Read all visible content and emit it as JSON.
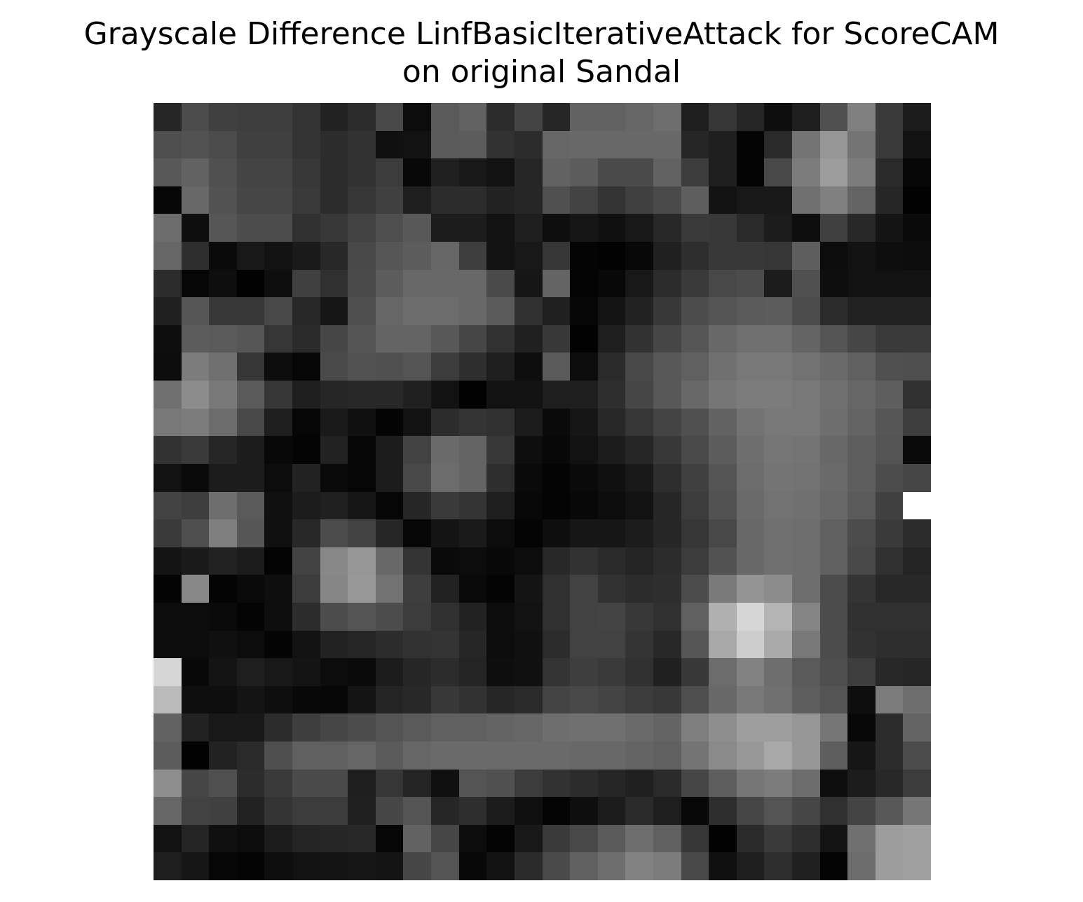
{
  "chart_data": {
    "type": "heatmap",
    "title_line1": "Grayscale Difference LinfBasicIterativeAttack for ScoreCAM",
    "title_line2": "on original Sandal",
    "axes": "off",
    "colormap": "gray",
    "value_range": [
      0,
      255
    ],
    "grid": [
      [
        38,
        76,
        64,
        62,
        62,
        52,
        34,
        44,
        72,
        12,
        90,
        98,
        44,
        68,
        38,
        98,
        98,
        102,
        110,
        30,
        54,
        38,
        14,
        30,
        80,
        128,
        58,
        28
      ],
      [
        78,
        82,
        76,
        64,
        64,
        52,
        44,
        50,
        16,
        18,
        90,
        92,
        50,
        44,
        102,
        104,
        104,
        104,
        104,
        38,
        30,
        4,
        42,
        116,
        150,
        116,
        58,
        18
      ],
      [
        88,
        98,
        80,
        68,
        68,
        56,
        44,
        50,
        60,
        8,
        32,
        24,
        18,
        38,
        98,
        92,
        74,
        74,
        98,
        60,
        30,
        4,
        72,
        124,
        156,
        124,
        42,
        6
      ],
      [
        6,
        104,
        82,
        70,
        70,
        58,
        44,
        54,
        64,
        30,
        44,
        44,
        34,
        38,
        80,
        66,
        52,
        64,
        74,
        94,
        18,
        24,
        24,
        112,
        128,
        100,
        38,
        2
      ],
      [
        108,
        14,
        86,
        76,
        76,
        48,
        56,
        66,
        78,
        88,
        28,
        28,
        18,
        30,
        14,
        22,
        16,
        24,
        40,
        58,
        56,
        42,
        28,
        14,
        64,
        40,
        20,
        10
      ],
      [
        102,
        46,
        10,
        24,
        18,
        26,
        40,
        72,
        86,
        92,
        102,
        62,
        18,
        24,
        54,
        4,
        2,
        8,
        32,
        46,
        56,
        56,
        54,
        94,
        12,
        18,
        14,
        12
      ],
      [
        44,
        6,
        14,
        2,
        14,
        64,
        48,
        74,
        92,
        104,
        104,
        104,
        74,
        22,
        100,
        4,
        8,
        24,
        44,
        58,
        72,
        76,
        28,
        80,
        14,
        18,
        18,
        18
      ],
      [
        32,
        86,
        56,
        56,
        72,
        40,
        22,
        78,
        102,
        108,
        108,
        104,
        90,
        48,
        32,
        6,
        20,
        34,
        56,
        76,
        84,
        90,
        92,
        76,
        44,
        34,
        34,
        34
      ],
      [
        14,
        92,
        90,
        86,
        54,
        42,
        70,
        84,
        100,
        100,
        88,
        70,
        50,
        32,
        56,
        2,
        30,
        50,
        70,
        86,
        104,
        112,
        112,
        100,
        84,
        70,
        58,
        58
      ],
      [
        12,
        124,
        112,
        54,
        12,
        6,
        74,
        82,
        80,
        84,
        60,
        46,
        30,
        14,
        90,
        12,
        42,
        72,
        88,
        96,
        112,
        120,
        120,
        114,
        106,
        96,
        80,
        78
      ],
      [
        112,
        140,
        120,
        90,
        54,
        30,
        38,
        40,
        40,
        32,
        18,
        2,
        18,
        18,
        30,
        30,
        46,
        70,
        88,
        104,
        118,
        124,
        124,
        120,
        112,
        102,
        94,
        48
      ],
      [
        120,
        124,
        108,
        72,
        30,
        6,
        26,
        16,
        4,
        18,
        44,
        52,
        48,
        28,
        10,
        22,
        40,
        54,
        68,
        80,
        98,
        114,
        120,
        120,
        110,
        100,
        86,
        62
      ],
      [
        50,
        58,
        38,
        28,
        8,
        4,
        34,
        6,
        28,
        66,
        106,
        100,
        56,
        14,
        8,
        18,
        28,
        38,
        56,
        74,
        92,
        110,
        118,
        116,
        104,
        94,
        84,
        10
      ],
      [
        18,
        10,
        28,
        28,
        12,
        34,
        10,
        6,
        28,
        72,
        108,
        100,
        46,
        10,
        4,
        10,
        16,
        24,
        46,
        64,
        84,
        108,
        116,
        114,
        106,
        94,
        76,
        70
      ],
      [
        66,
        62,
        110,
        90,
        16,
        28,
        32,
        22,
        6,
        38,
        58,
        52,
        30,
        8,
        4,
        8,
        12,
        18,
        38,
        60,
        82,
        106,
        114,
        112,
        104,
        90,
        64,
        52
      ],
      [
        58,
        78,
        126,
        86,
        16,
        40,
        76,
        66,
        38,
        6,
        20,
        26,
        12,
        4,
        14,
        22,
        22,
        28,
        38,
        54,
        72,
        104,
        112,
        110,
        96,
        76,
        58,
        44
      ],
      [
        20,
        26,
        34,
        28,
        4,
        66,
        136,
        150,
        104,
        52,
        10,
        12,
        8,
        12,
        40,
        50,
        42,
        36,
        44,
        60,
        82,
        104,
        112,
        110,
        96,
        72,
        48,
        36
      ],
      [
        4,
        136,
        4,
        10,
        14,
        60,
        134,
        152,
        114,
        62,
        34,
        10,
        4,
        20,
        48,
        66,
        50,
        44,
        46,
        76,
        122,
        148,
        140,
        110,
        76,
        52,
        40,
        40
      ],
      [
        12,
        12,
        10,
        4,
        14,
        44,
        76,
        84,
        76,
        60,
        48,
        34,
        12,
        18,
        48,
        66,
        68,
        56,
        48,
        96,
        176,
        214,
        180,
        132,
        76,
        48,
        48,
        48
      ],
      [
        12,
        12,
        16,
        12,
        4,
        18,
        34,
        38,
        44,
        50,
        52,
        38,
        12,
        16,
        44,
        66,
        66,
        52,
        40,
        86,
        168,
        204,
        170,
        120,
        76,
        50,
        46,
        46
      ],
      [
        214,
        8,
        20,
        30,
        24,
        20,
        12,
        10,
        28,
        38,
        44,
        36,
        14,
        16,
        52,
        62,
        58,
        48,
        32,
        56,
        108,
        130,
        110,
        90,
        78,
        62,
        40,
        38
      ],
      [
        186,
        14,
        14,
        20,
        14,
        8,
        6,
        20,
        36,
        40,
        56,
        50,
        38,
        42,
        68,
        72,
        68,
        60,
        56,
        78,
        104,
        120,
        112,
        94,
        84,
        14,
        124,
        110
      ],
      [
        98,
        34,
        24,
        24,
        44,
        62,
        70,
        76,
        84,
        90,
        96,
        96,
        100,
        102,
        110,
        112,
        112,
        106,
        100,
        126,
        142,
        158,
        158,
        150,
        118,
        8,
        44,
        100
      ],
      [
        92,
        2,
        34,
        42,
        78,
        96,
        96,
        102,
        90,
        102,
        106,
        106,
        106,
        106,
        106,
        104,
        104,
        100,
        96,
        116,
        138,
        152,
        168,
        150,
        94,
        22,
        44,
        76
      ],
      [
        142,
        70,
        80,
        44,
        58,
        74,
        74,
        30,
        54,
        36,
        16,
        84,
        80,
        60,
        50,
        44,
        38,
        32,
        42,
        70,
        94,
        118,
        124,
        108,
        14,
        28,
        40,
        60
      ],
      [
        102,
        66,
        64,
        34,
        52,
        60,
        60,
        32,
        70,
        84,
        38,
        46,
        28,
        16,
        4,
        14,
        28,
        42,
        30,
        8,
        46,
        70,
        84,
        70,
        48,
        68,
        88,
        118
      ],
      [
        18,
        36,
        16,
        12,
        28,
        36,
        38,
        40,
        6,
        98,
        70,
        12,
        4,
        24,
        58,
        72,
        90,
        110,
        96,
        54,
        2,
        42,
        58,
        46,
        20,
        112,
        156,
        160
      ],
      [
        30,
        22,
        6,
        4,
        14,
        18,
        20,
        22,
        20,
        70,
        84,
        8,
        18,
        42,
        74,
        96,
        110,
        130,
        124,
        72,
        16,
        30,
        46,
        32,
        4,
        108,
        156,
        160
      ]
    ],
    "grid_overrides": [
      {
        "row": 14,
        "col": 27,
        "value": 255
      }
    ]
  }
}
